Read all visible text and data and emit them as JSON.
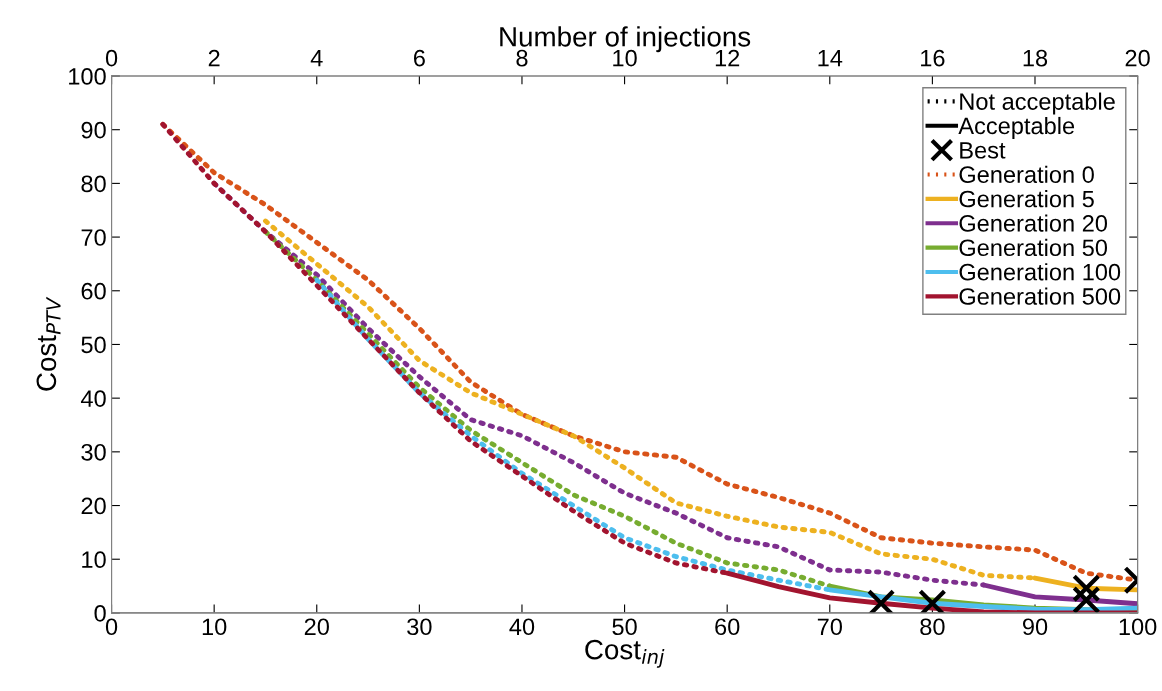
{
  "chart_data": {
    "type": "line",
    "xlabel": "Cost$_{inj}$",
    "ylabel": "Cost$_{PTV}$",
    "x2label": "Number of injections",
    "xlim": [
      0,
      100
    ],
    "xticks": [
      0,
      10,
      20,
      30,
      40,
      50,
      60,
      70,
      80,
      90,
      100
    ],
    "ylim": [
      0,
      100
    ],
    "yticks": [
      0,
      10,
      20,
      30,
      40,
      50,
      60,
      70,
      80,
      90,
      100
    ],
    "x2lim": [
      0,
      20
    ],
    "x2ticks": [
      0,
      2,
      4,
      6,
      8,
      10,
      12,
      14,
      16,
      18,
      20
    ],
    "legend": "top right",
    "x": [
      5,
      10,
      15,
      20,
      25,
      30,
      35,
      40,
      45,
      50,
      55,
      60,
      65,
      70,
      75,
      80,
      85,
      90,
      95,
      100
    ],
    "series": [
      {
        "name": "Not acceptable",
        "color": "#000000",
        "line_style": "dotted",
        "values": [
          null,
          null,
          null,
          null,
          null,
          null,
          null,
          null,
          null,
          null,
          null,
          null,
          null,
          null,
          null,
          null,
          null,
          null,
          null,
          null
        ]
      },
      {
        "name": "Acceptable",
        "color": "#000000",
        "line_style": "solid",
        "values": [
          null,
          null,
          null,
          null,
          null,
          null,
          null,
          null,
          null,
          null,
          null,
          null,
          null,
          null,
          null,
          null,
          null,
          null,
          null,
          null
        ]
      },
      {
        "name": "Best",
        "type": "scatter",
        "marker": "cross",
        "color": "#000000",
        "x": [
          75,
          80,
          95,
          95,
          100
        ],
        "values": [
          1.8,
          1.8,
          4.6,
          2.4,
          6.1
        ]
      },
      {
        "name": "Generation 0",
        "color": "#d95319",
        "line_style": "dotted",
        "values": [
          91,
          82,
          76,
          69,
          62,
          53,
          43,
          37,
          33,
          30,
          29,
          24,
          21.5,
          18.6,
          14,
          13,
          12.3,
          11.7,
          7.4,
          6.1
        ]
      },
      {
        "color": "#edb120",
        "line_style": "dotted",
        "values": [
          null,
          null,
          73,
          65,
          57,
          47,
          41,
          37,
          33,
          27,
          20.5,
          18,
          16,
          15,
          11,
          10,
          7,
          6.5,
          null,
          null
        ]
      },
      {
        "name": "Generation 5",
        "color": "#edb120",
        "line_style": "solid",
        "values": [
          null,
          null,
          null,
          null,
          null,
          null,
          null,
          null,
          null,
          null,
          null,
          null,
          null,
          null,
          null,
          null,
          null,
          6.5,
          4.6,
          4.3
        ]
      },
      {
        "color": "#7e2f8e",
        "line_style": "dotted",
        "values": [
          null,
          80,
          71,
          63,
          53,
          44,
          36,
          33,
          28,
          22.3,
          18.6,
          14,
          12.3,
          8,
          7.6,
          6.1,
          5.2,
          null,
          null,
          null
        ]
      },
      {
        "name": "Generation 20",
        "color": "#7e2f8e",
        "line_style": "solid",
        "values": [
          null,
          null,
          null,
          null,
          null,
          null,
          null,
          null,
          null,
          null,
          null,
          null,
          null,
          null,
          null,
          null,
          5.2,
          3,
          2.4,
          1.7
        ]
      },
      {
        "color": "#77ac30",
        "line_style": "dotted",
        "values": [
          null,
          null,
          71,
          62,
          52,
          42,
          34,
          28,
          22,
          18,
          13,
          9.3,
          8,
          5,
          null,
          null,
          null,
          null,
          null,
          null
        ]
      },
      {
        "name": "Generation 50",
        "color": "#77ac30",
        "line_style": "solid",
        "values": [
          null,
          null,
          null,
          null,
          null,
          null,
          null,
          null,
          null,
          null,
          null,
          null,
          null,
          5,
          3,
          2.4,
          1.5,
          0.9,
          0.6,
          0.7
        ]
      },
      {
        "color": "#4dbeee",
        "line_style": "dotted",
        "values": [
          null,
          null,
          null,
          62,
          51,
          41,
          33,
          26,
          20,
          14,
          10.5,
          8,
          6.1,
          4.3,
          null,
          null,
          null,
          null,
          null,
          null
        ]
      },
      {
        "name": "Generation 100",
        "color": "#4dbeee",
        "line_style": "solid",
        "values": [
          null,
          null,
          null,
          null,
          null,
          null,
          null,
          null,
          null,
          null,
          null,
          null,
          null,
          4.3,
          3,
          1.8,
          1.2,
          0.7,
          0.6,
          0.9
        ]
      },
      {
        "color": "#a2142f",
        "line_style": "dotted",
        "values": [
          91,
          80,
          71,
          61,
          51,
          41,
          32,
          25.5,
          19,
          13,
          9.3,
          7.4,
          null,
          null,
          null,
          null,
          null,
          null,
          null,
          null
        ]
      },
      {
        "name": "Generation 500",
        "color": "#a2142f",
        "line_style": "solid",
        "values": [
          null,
          null,
          null,
          null,
          null,
          null,
          null,
          null,
          null,
          null,
          null,
          7.4,
          4.9,
          2.8,
          1.8,
          0.9,
          0.2,
          0,
          0,
          0
        ]
      }
    ]
  }
}
